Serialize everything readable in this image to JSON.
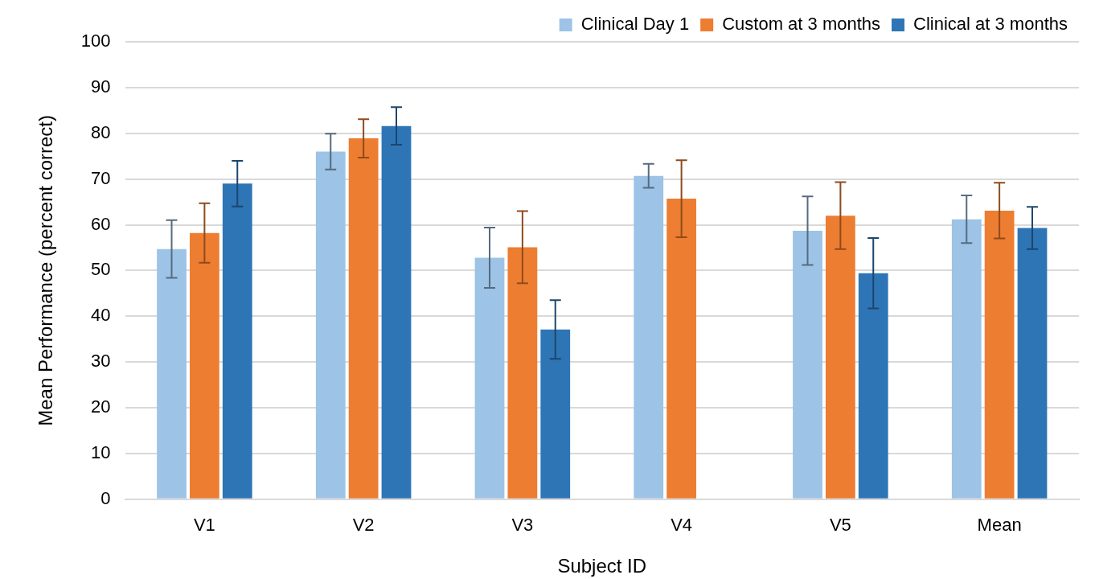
{
  "chart_data": {
    "type": "bar",
    "xlabel": "Subject ID",
    "ylabel": "Mean Performance (percent correct)",
    "categories": [
      "V1",
      "V2",
      "V3",
      "V4",
      "V5",
      "Mean"
    ],
    "series": [
      {
        "name": "Clinical Day 1",
        "color": "#9dc3e6",
        "values": [
          54.7,
          76.0,
          52.8,
          70.7,
          58.7,
          61.2
        ],
        "errors": [
          6.3,
          3.9,
          6.6,
          2.6,
          7.5,
          5.2
        ]
      },
      {
        "name": "Custom at 3 months",
        "color": "#ed7d31",
        "values": [
          58.2,
          78.9,
          55.1,
          65.7,
          62.0,
          63.1
        ],
        "errors": [
          6.5,
          4.2,
          7.9,
          8.4,
          7.3,
          6.1
        ]
      },
      {
        "name": "Clinical at 3 months",
        "color": "#2e75b6",
        "values": [
          69.0,
          81.6,
          37.1,
          null,
          49.4,
          59.3
        ],
        "errors": [
          5.0,
          4.1,
          6.4,
          null,
          7.7,
          4.6
        ]
      }
    ],
    "ylim": [
      0,
      100
    ],
    "yticks": [
      0,
      10,
      20,
      30,
      40,
      50,
      60,
      70,
      80,
      90,
      100
    ],
    "grid": "y",
    "legend": "top right"
  }
}
